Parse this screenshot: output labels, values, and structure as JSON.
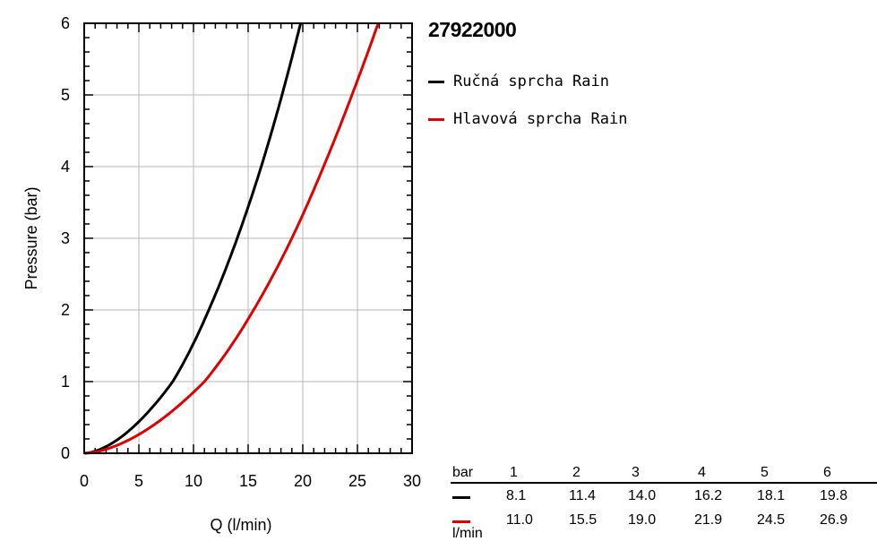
{
  "chart_data": {
    "type": "line",
    "title": "27922000",
    "xlabel": "Q (l/min)",
    "ylabel": "Pressure (bar)",
    "xlim": [
      0,
      30
    ],
    "ylim": [
      0,
      6
    ],
    "xticks": [
      0,
      5,
      10,
      15,
      20,
      25,
      30
    ],
    "yticks": [
      0,
      1,
      2,
      3,
      4,
      5,
      6
    ],
    "grid": true,
    "legend_position": "right",
    "series": [
      {
        "name": "Ručná sprcha Rain",
        "color": "#000000",
        "x": [
          0,
          8.1,
          11.4,
          14.0,
          16.2,
          18.1,
          19.8
        ],
        "y": [
          0,
          1,
          2,
          3,
          4,
          5,
          6
        ]
      },
      {
        "name": "Hlavová sprcha Rain",
        "color": "#e00000",
        "x": [
          0,
          11.0,
          15.5,
          19.0,
          21.9,
          24.5,
          26.9
        ],
        "y": [
          0,
          1,
          2,
          3,
          4,
          5,
          6
        ]
      }
    ]
  },
  "table": {
    "unit_pressure": "bar",
    "unit_flow": "l/min",
    "pressures": [
      "1",
      "2",
      "3",
      "4",
      "5",
      "6"
    ],
    "rows": [
      {
        "color": "#000000",
        "values": [
          "8.1",
          "11.4",
          "14.0",
          "16.2",
          "18.1",
          "19.8"
        ]
      },
      {
        "color": "#e00000",
        "values": [
          "11.0",
          "15.5",
          "19.0",
          "21.9",
          "24.5",
          "26.9"
        ]
      }
    ]
  }
}
